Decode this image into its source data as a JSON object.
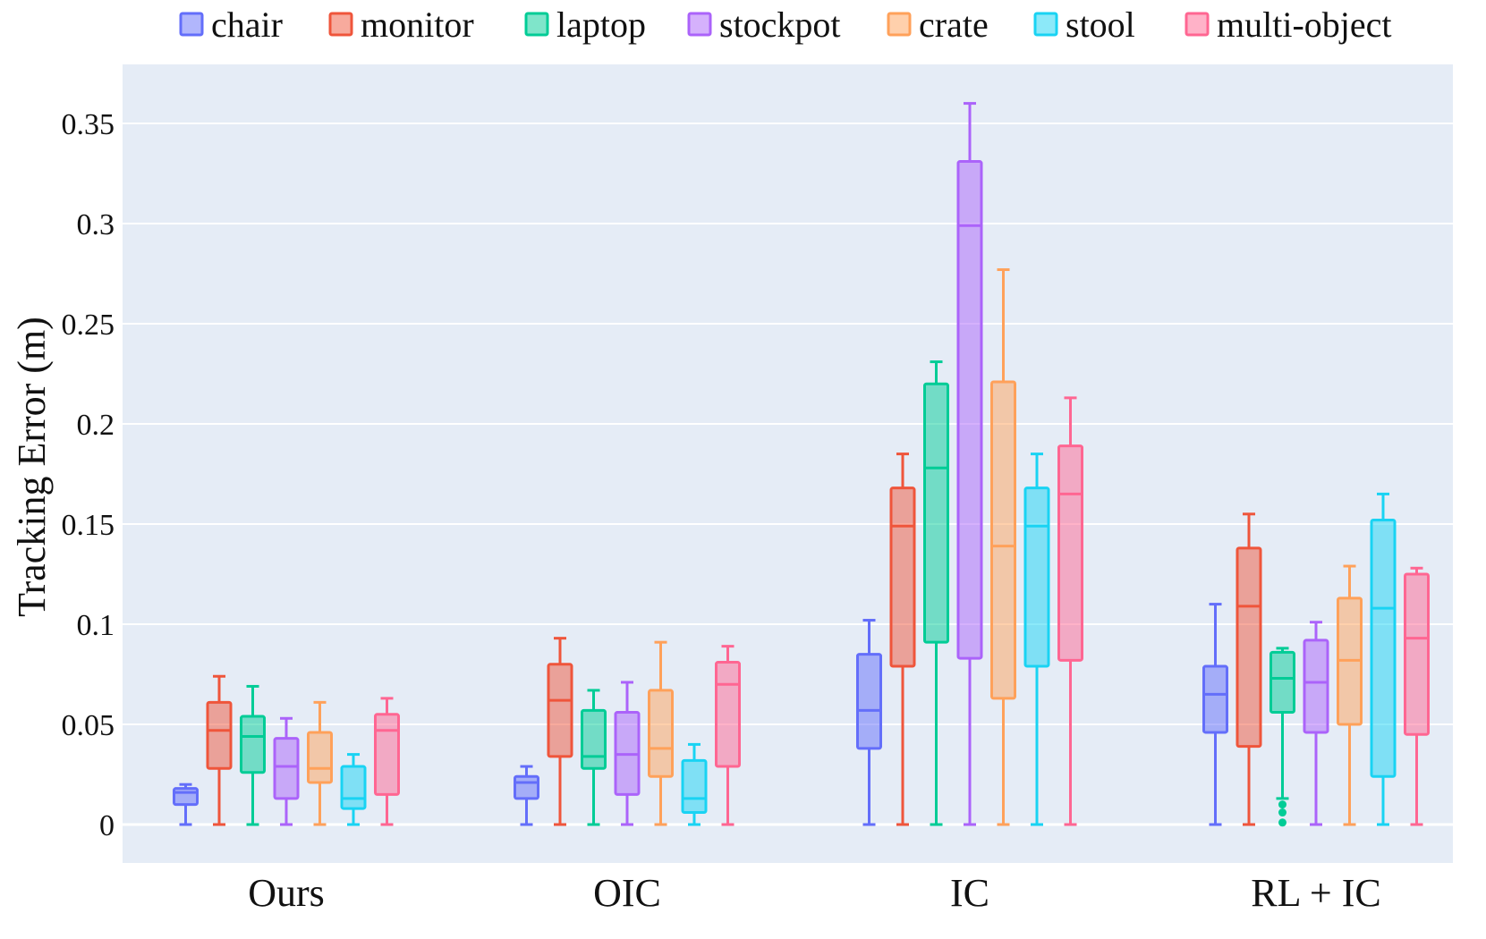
{
  "chart_data": {
    "type": "box",
    "title": "",
    "xlabel": "",
    "ylabel": "Tracking Error (m)",
    "ylim": [
      -0.02,
      0.375
    ],
    "yticks": [
      0,
      0.05,
      0.1,
      0.15,
      0.2,
      0.25,
      0.3,
      0.35
    ],
    "ytick_labels": [
      "0",
      "0.05",
      "0.1",
      "0.15",
      "0.2",
      "0.25",
      "0.3",
      "0.35"
    ],
    "grid": true,
    "legend_position": "top",
    "categories": [
      "Ours",
      "OIC",
      "IC",
      "RL + IC"
    ],
    "series": [
      {
        "name": "chair",
        "color": "#636EFA",
        "boxes": [
          {
            "min": 0,
            "q1": 0.01,
            "median": 0.016,
            "q3": 0.018,
            "max": 0.02
          },
          {
            "min": 0,
            "q1": 0.013,
            "median": 0.021,
            "q3": 0.024,
            "max": 0.029
          },
          {
            "min": 0,
            "q1": 0.038,
            "median": 0.057,
            "q3": 0.085,
            "max": 0.102
          },
          {
            "min": 0,
            "q1": 0.046,
            "median": 0.065,
            "q3": 0.079,
            "max": 0.11
          }
        ]
      },
      {
        "name": "monitor",
        "color": "#EF553B",
        "boxes": [
          {
            "min": 0,
            "q1": 0.028,
            "median": 0.047,
            "q3": 0.061,
            "max": 0.074
          },
          {
            "min": 0,
            "q1": 0.034,
            "median": 0.062,
            "q3": 0.08,
            "max": 0.093
          },
          {
            "min": 0,
            "q1": 0.079,
            "median": 0.149,
            "q3": 0.168,
            "max": 0.185
          },
          {
            "min": 0,
            "q1": 0.039,
            "median": 0.109,
            "q3": 0.138,
            "max": 0.155
          }
        ]
      },
      {
        "name": "laptop",
        "color": "#00CC96",
        "boxes": [
          {
            "min": 0,
            "q1": 0.026,
            "median": 0.044,
            "q3": 0.054,
            "max": 0.069
          },
          {
            "min": 0,
            "q1": 0.028,
            "median": 0.034,
            "q3": 0.057,
            "max": 0.067
          },
          {
            "min": 0,
            "q1": 0.091,
            "median": 0.178,
            "q3": 0.22,
            "max": 0.231
          },
          {
            "min": 0.013,
            "q1": 0.056,
            "median": 0.073,
            "q3": 0.086,
            "max": 0.088,
            "outliers": [
              0.01,
              0.006,
              0.001
            ]
          }
        ]
      },
      {
        "name": "stockpot",
        "color": "#AB63FA",
        "boxes": [
          {
            "min": 0,
            "q1": 0.013,
            "median": 0.029,
            "q3": 0.043,
            "max": 0.053
          },
          {
            "min": 0,
            "q1": 0.015,
            "median": 0.035,
            "q3": 0.056,
            "max": 0.071
          },
          {
            "min": 0,
            "q1": 0.083,
            "median": 0.299,
            "q3": 0.331,
            "max": 0.36
          },
          {
            "min": 0,
            "q1": 0.046,
            "median": 0.071,
            "q3": 0.092,
            "max": 0.101
          }
        ]
      },
      {
        "name": "crate",
        "color": "#FFA15A",
        "boxes": [
          {
            "min": 0,
            "q1": 0.021,
            "median": 0.028,
            "q3": 0.046,
            "max": 0.061
          },
          {
            "min": 0,
            "q1": 0.024,
            "median": 0.038,
            "q3": 0.067,
            "max": 0.091
          },
          {
            "min": 0,
            "q1": 0.063,
            "median": 0.139,
            "q3": 0.221,
            "max": 0.277
          },
          {
            "min": 0,
            "q1": 0.05,
            "median": 0.082,
            "q3": 0.113,
            "max": 0.129
          }
        ]
      },
      {
        "name": "stool",
        "color": "#19D3F3",
        "boxes": [
          {
            "min": 0,
            "q1": 0.008,
            "median": 0.013,
            "q3": 0.029,
            "max": 0.035
          },
          {
            "min": 0,
            "q1": 0.006,
            "median": 0.013,
            "q3": 0.032,
            "max": 0.04
          },
          {
            "min": 0,
            "q1": 0.079,
            "median": 0.149,
            "q3": 0.168,
            "max": 0.185
          },
          {
            "min": 0,
            "q1": 0.024,
            "median": 0.108,
            "q3": 0.152,
            "max": 0.165
          }
        ]
      },
      {
        "name": "multi-object",
        "color": "#FF6692",
        "boxes": [
          {
            "min": 0,
            "q1": 0.015,
            "median": 0.047,
            "q3": 0.055,
            "max": 0.063
          },
          {
            "min": 0,
            "q1": 0.029,
            "median": 0.07,
            "q3": 0.081,
            "max": 0.089
          },
          {
            "min": 0,
            "q1": 0.082,
            "median": 0.165,
            "q3": 0.189,
            "max": 0.213
          },
          {
            "min": 0,
            "q1": 0.045,
            "median": 0.093,
            "q3": 0.125,
            "max": 0.128
          }
        ]
      }
    ]
  }
}
